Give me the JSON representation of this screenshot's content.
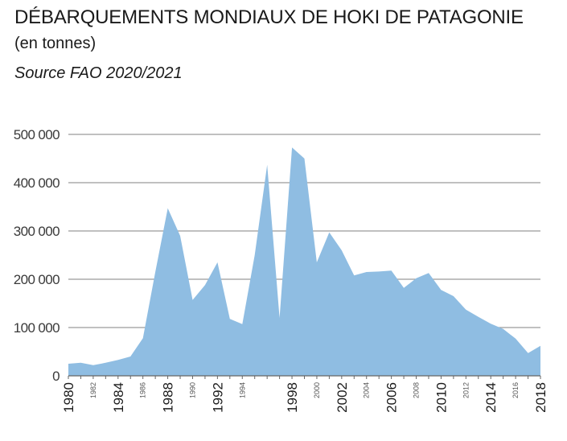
{
  "chart_data": {
    "type": "area",
    "title": "DÉBARQUEMENTS MONDIAUX DE HOKI DE PATAGONIE",
    "subtitle": "(en tonnes)",
    "source": "Source FAO 2020/2021",
    "x": [
      1980,
      1981,
      1982,
      1983,
      1984,
      1985,
      1986,
      1987,
      1988,
      1989,
      1990,
      1991,
      1992,
      1993,
      1994,
      1995,
      1996,
      1997,
      1998,
      1999,
      2000,
      2001,
      2002,
      2003,
      2004,
      2005,
      2006,
      2007,
      2008,
      2009,
      2010,
      2011,
      2012,
      2013,
      2014,
      2015,
      2016,
      2017,
      2018
    ],
    "values": [
      25000,
      27000,
      22000,
      27000,
      33000,
      40000,
      78000,
      215000,
      347000,
      290000,
      157000,
      188000,
      235000,
      118000,
      107000,
      250000,
      437000,
      120000,
      473000,
      450000,
      235000,
      297000,
      260000,
      208000,
      215000,
      216000,
      218000,
      182000,
      202000,
      213000,
      178000,
      165000,
      137000,
      122000,
      108000,
      97000,
      77000,
      47000,
      62000
    ],
    "yticks": [
      0,
      100000,
      200000,
      300000,
      400000,
      500000
    ],
    "ytick_labels": [
      "0",
      "100 000",
      "200 000",
      "300 000",
      "400 000",
      "500 000"
    ],
    "ylim": [
      0,
      500000
    ],
    "xlim": [
      1980,
      2018
    ],
    "xticks_major": [
      1980,
      1984,
      1988,
      1992,
      1998,
      2002,
      2006,
      2010,
      2014,
      2018
    ],
    "xticks_minor": [
      1982,
      1986,
      1990,
      1994,
      2000,
      2004,
      2008,
      2012,
      2016
    ],
    "xtick_labels_major": [
      "1980",
      "1984",
      "1988",
      "1992",
      "1998",
      "2002",
      "2006",
      "2010",
      "2014",
      "2018"
    ],
    "xtick_labels_minor": [
      "1982",
      "1986",
      "1990",
      "1994",
      "2000",
      "2004",
      "2008",
      "2012",
      "2016"
    ],
    "grid": true,
    "fill_color": "#8fbde2",
    "grid_color": "#9a9a9a"
  }
}
